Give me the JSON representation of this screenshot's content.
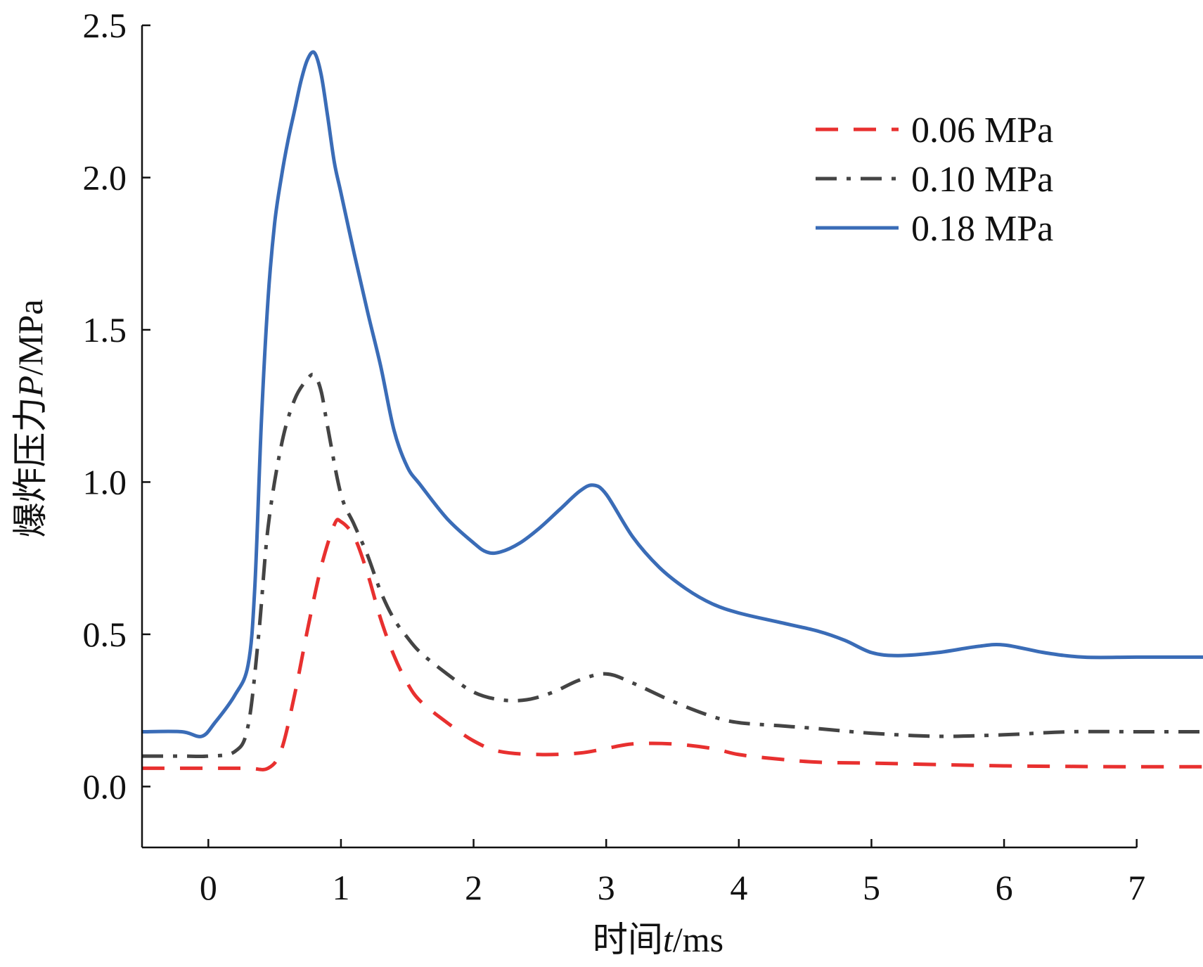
{
  "chart_data": {
    "type": "line",
    "xlabel": {
      "prefix": "时间",
      "var": "t",
      "suffix": "/ms"
    },
    "ylabel": {
      "prefix": "爆炸压力",
      "var": "P",
      "suffix": "/MPa"
    },
    "xlim": [
      -0.5,
      7.5
    ],
    "ylim": [
      -0.2,
      2.5
    ],
    "xticks": [
      0,
      1,
      2,
      3,
      4,
      5,
      6,
      7
    ],
    "yticks": [
      0.0,
      0.5,
      1.0,
      1.5,
      2.0,
      2.5
    ],
    "xtick_labels": [
      "0",
      "1",
      "2",
      "3",
      "4",
      "5",
      "6",
      "7"
    ],
    "ytick_labels": [
      "0.0",
      "0.5",
      "1.0",
      "1.5",
      "2.0",
      "2.5"
    ],
    "legend_position": "top-right",
    "grid": false,
    "series": [
      {
        "name": "0.06 MPa",
        "style": "dashed",
        "color": "#e8302f",
        "x": [
          -0.5,
          0.0,
          0.3,
          0.45,
          0.55,
          0.65,
          0.75,
          0.85,
          0.95,
          1.0,
          1.1,
          1.2,
          1.3,
          1.4,
          1.5,
          1.6,
          1.8,
          2.0,
          2.2,
          2.5,
          2.8,
          3.0,
          3.2,
          3.5,
          3.8,
          4.0,
          4.3,
          4.6,
          5.0,
          5.5,
          6.0,
          6.5,
          7.0,
          7.5
        ],
        "y": [
          0.06,
          0.06,
          0.06,
          0.06,
          0.12,
          0.3,
          0.52,
          0.72,
          0.86,
          0.87,
          0.82,
          0.7,
          0.55,
          0.43,
          0.34,
          0.28,
          0.21,
          0.15,
          0.115,
          0.105,
          0.11,
          0.125,
          0.14,
          0.14,
          0.125,
          0.105,
          0.09,
          0.08,
          0.077,
          0.072,
          0.068,
          0.066,
          0.065,
          0.065
        ]
      },
      {
        "name": "0.10 MPa",
        "style": "dashdot",
        "color": "#444444",
        "x": [
          -0.5,
          -0.2,
          0.0,
          0.2,
          0.3,
          0.38,
          0.45,
          0.55,
          0.65,
          0.75,
          0.8,
          0.85,
          0.9,
          1.0,
          1.1,
          1.2,
          1.3,
          1.4,
          1.5,
          1.6,
          1.8,
          2.0,
          2.2,
          2.4,
          2.6,
          2.8,
          3.0,
          3.2,
          3.5,
          3.8,
          4.0,
          4.3,
          4.6,
          5.0,
          5.5,
          6.0,
          6.5,
          7.0,
          7.5
        ],
        "y": [
          0.1,
          0.1,
          0.1,
          0.115,
          0.2,
          0.5,
          0.85,
          1.12,
          1.27,
          1.34,
          1.35,
          1.3,
          1.18,
          0.96,
          0.86,
          0.76,
          0.64,
          0.55,
          0.49,
          0.44,
          0.37,
          0.31,
          0.285,
          0.285,
          0.31,
          0.35,
          0.37,
          0.34,
          0.28,
          0.23,
          0.21,
          0.2,
          0.19,
          0.175,
          0.165,
          0.17,
          0.18,
          0.18,
          0.18
        ]
      },
      {
        "name": "0.18 MPa",
        "style": "solid",
        "color": "#3a6cb7",
        "x": [
          -0.5,
          -0.2,
          -0.05,
          0.05,
          0.2,
          0.3,
          0.35,
          0.4,
          0.45,
          0.5,
          0.55,
          0.6,
          0.65,
          0.7,
          0.75,
          0.8,
          0.85,
          0.9,
          0.95,
          1.0,
          1.1,
          1.2,
          1.3,
          1.4,
          1.5,
          1.6,
          1.8,
          2.0,
          2.1,
          2.2,
          2.35,
          2.5,
          2.65,
          2.8,
          2.9,
          3.0,
          3.2,
          3.4,
          3.6,
          3.8,
          4.0,
          4.3,
          4.6,
          4.8,
          5.0,
          5.2,
          5.5,
          5.8,
          6.0,
          6.3,
          6.6,
          7.0,
          7.5
        ],
        "y": [
          0.18,
          0.18,
          0.165,
          0.21,
          0.3,
          0.4,
          0.65,
          1.2,
          1.6,
          1.85,
          2.0,
          2.12,
          2.22,
          2.32,
          2.39,
          2.41,
          2.34,
          2.2,
          2.05,
          1.95,
          1.75,
          1.56,
          1.38,
          1.17,
          1.05,
          0.99,
          0.88,
          0.8,
          0.77,
          0.77,
          0.8,
          0.85,
          0.91,
          0.97,
          0.99,
          0.96,
          0.82,
          0.72,
          0.65,
          0.6,
          0.57,
          0.54,
          0.51,
          0.48,
          0.44,
          0.43,
          0.44,
          0.46,
          0.465,
          0.44,
          0.425,
          0.425,
          0.425
        ]
      }
    ]
  }
}
